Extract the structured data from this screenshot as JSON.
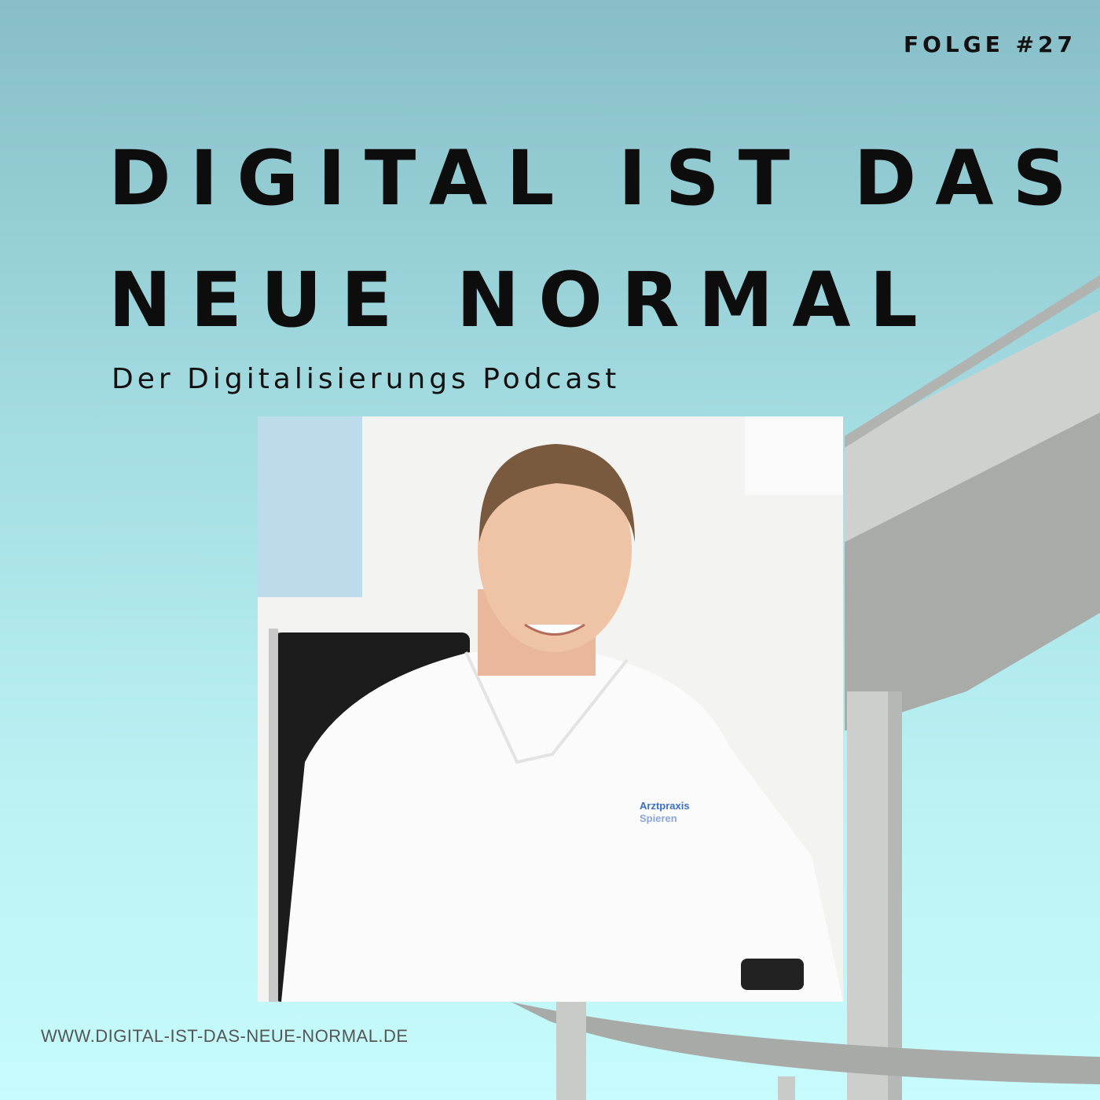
{
  "episode": "FOLGE #27",
  "title_line1": "DIGITAL IST DAS",
  "title_line2": "NEUE NORMAL",
  "subtitle": "Der Digitalisierungs Podcast",
  "url": "WWW.DIGITAL-IST-DAS-NEUE-NORMAL.DE",
  "photo": {
    "shirt_logo_line1": "Arztpraxis",
    "shirt_logo_line2": "Spieren"
  },
  "colors": {
    "background_top": "#87bec8",
    "background_bottom": "#c7fbfc",
    "text": "#111111"
  }
}
